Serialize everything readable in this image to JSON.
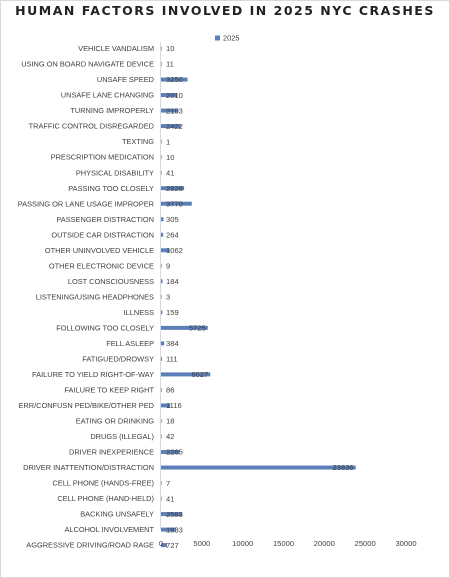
{
  "chart_data": {
    "type": "bar",
    "orientation": "horizontal",
    "title": "HUMAN FACTORS INVOLVED IN 2025 NYC CRASHES",
    "xlabel": "",
    "ylabel": "",
    "xlim": [
      0,
      30000
    ],
    "xticks": [
      "0",
      "5000",
      "10000",
      "15000",
      "20000",
      "25000",
      "30000"
    ],
    "grid": false,
    "legend_position": "top-right",
    "bar_color": "#5b7fb8",
    "categories": [
      "VEHICLE VANDALISM",
      "USING ON BOARD NAVIGATE DEVICE",
      "UNSAFE SPEED",
      "UNSAFE LANE CHANGING",
      "TURNING IMPROPERLY",
      "TRAFFIC CONTROL DISREGARDED",
      "TEXTING",
      "PRESCRIPTION MEDICATION",
      "PHYSICAL DISABILITY",
      "PASSING TOO CLOSELY",
      "PASSING OR LANE USAGE IMPROPER",
      "PASSENGER DISTRACTION",
      "OUTSIDE CAR DISTRACTION",
      "OTHER UNINVOLVED VEHICLE",
      "OTHER ELECTRONIC DEVICE",
      "LOST CONSCIOUSNESS",
      "LISTENING/USING HEADPHONES",
      "ILLNESS",
      "FOLLOWING TOO CLOSELY",
      "FELL ASLEEP",
      "FATIGUED/DROWSY",
      "FAILURE TO YIELD RIGHT-OF-WAY",
      "FAILURE TO KEEP RIGHT",
      "ERR/CONFUSN  PED/BIKE/OTHER PED",
      "EATING OR DRINKING",
      "DRUGS (ILLEGAL)",
      "DRIVER INEXPERIENCE",
      "DRIVER INATTENTION/DISTRACTION",
      "CELL PHONE (HANDS-FREE)",
      "CELL PHONE (HAND-HELD)",
      "BACKING UNSAFELY",
      "ALCOHOL INVOLVEMENT",
      "AGGRESSIVE DRIVING/ROAD RAGE"
    ],
    "series": [
      {
        "name": "2025",
        "values": [
          10,
          11,
          3250,
          2010,
          2103,
          2422,
          1,
          10,
          41,
          2826,
          3770,
          305,
          264,
          1062,
          9,
          184,
          3,
          159,
          5725,
          384,
          111,
          6027,
          86,
          1116,
          18,
          42,
          2265,
          23836,
          7,
          41,
          2583,
          1833,
          727
        ],
        "labels": [
          "10",
          "11",
          "3250",
          "2010",
          "2103",
          "2422",
          "1",
          "10",
          "41",
          "2826",
          "3770",
          "305",
          "264",
          "1062",
          "9",
          "184",
          "3",
          "159",
          "5725",
          "384",
          "111",
          "6027",
          "86",
          "1116",
          "18",
          "42",
          "2265",
          "23836",
          "7",
          "41",
          "2583",
          "1833",
          "727"
        ]
      }
    ]
  }
}
